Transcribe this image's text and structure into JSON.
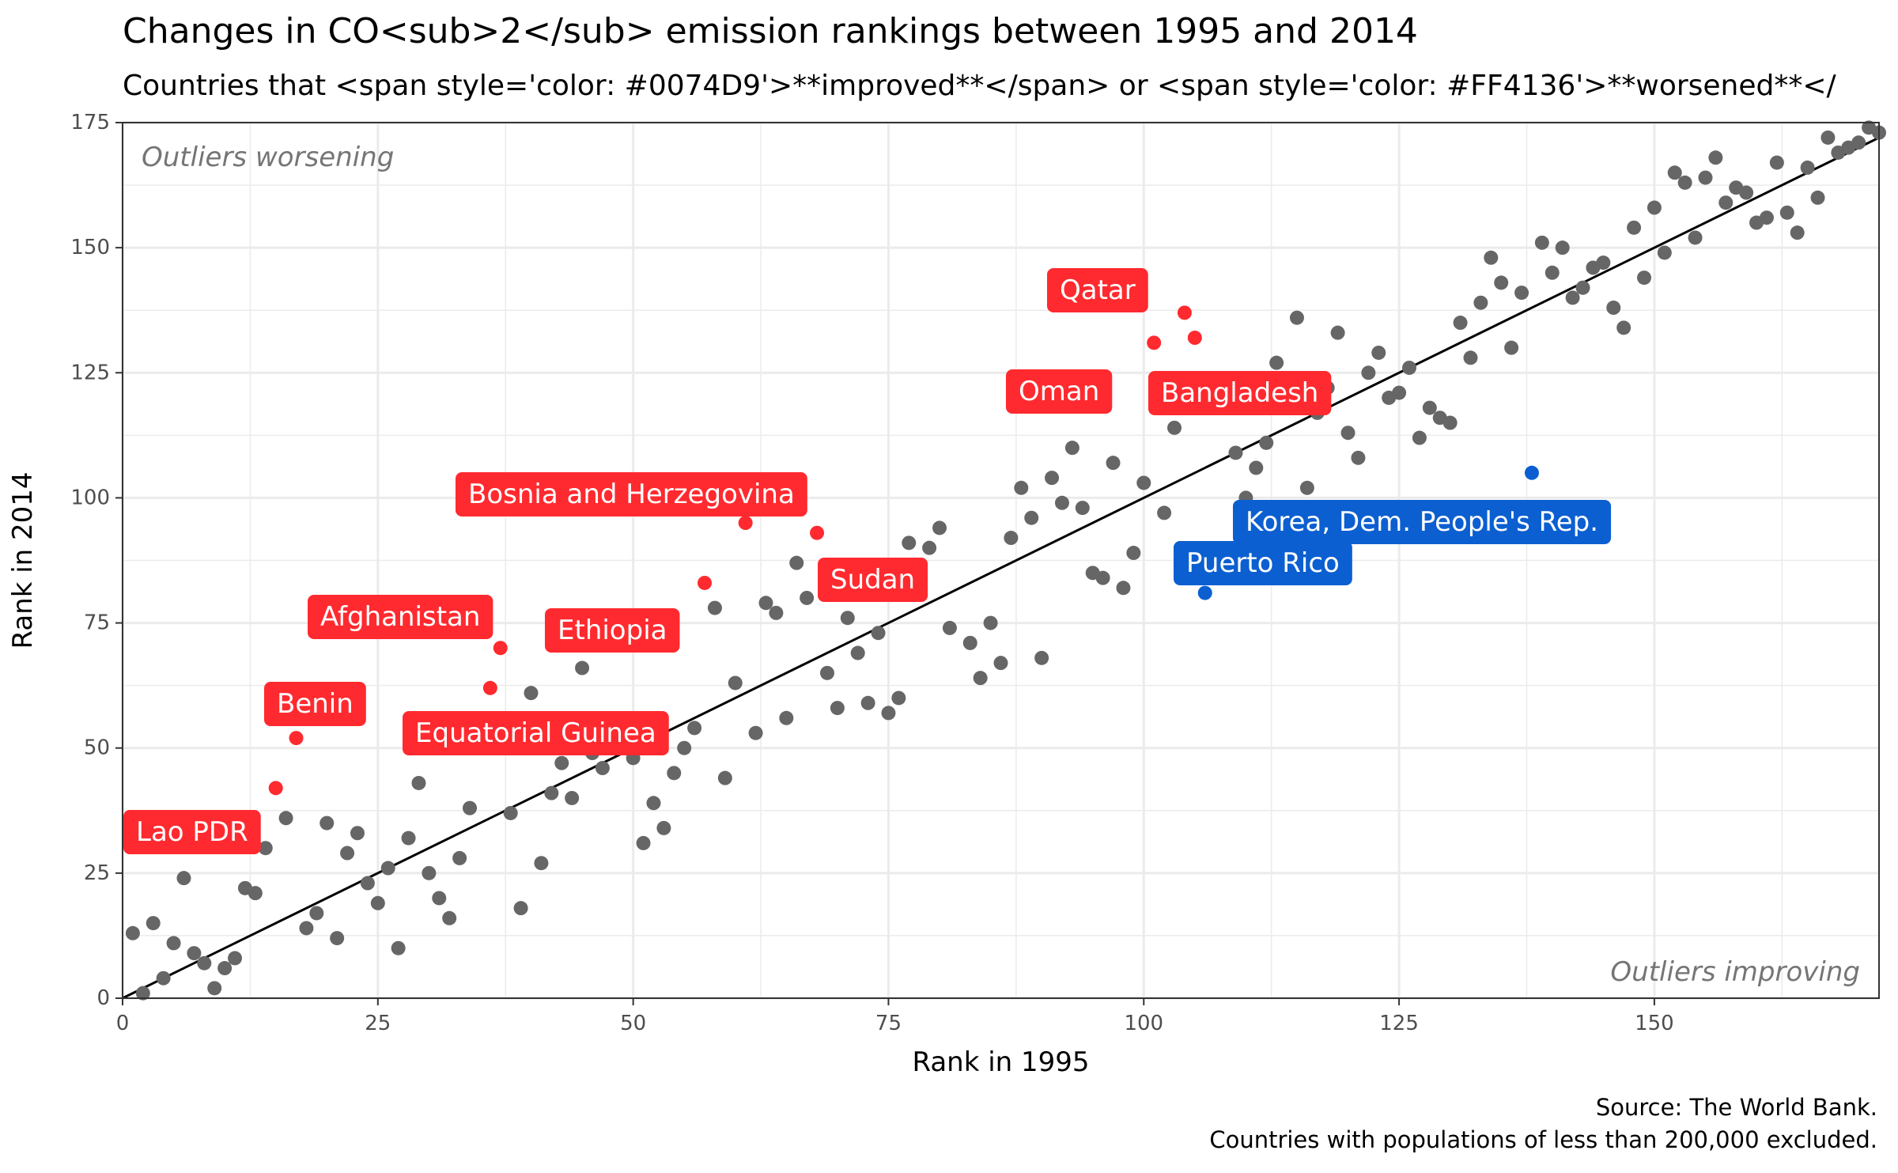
{
  "title": "Changes in CO<sub>2</sub> emission rankings between 1995 and 2014",
  "subtitle": "Countries that <span style='color: #0074D9'>**improved**</span> or <span style='color: #FF4136'>**worsened**</",
  "caption": {
    "line1": "Source: The World Bank.",
    "line2": "Countries with populations of less than 200,000 excluded."
  },
  "colors": {
    "worsened": "#FF2A2F",
    "improved": "#0B5FD0",
    "other": "#666666",
    "grid": "#EBEBEB"
  },
  "chart_data": {
    "type": "scatter",
    "xlabel": "Rank in 1995",
    "ylabel": "Rank in 2014",
    "xlim": [
      0,
      172
    ],
    "ylim": [
      0,
      175
    ],
    "xticks": [
      0,
      25,
      50,
      75,
      100,
      125,
      150
    ],
    "yticks": [
      0,
      25,
      50,
      75,
      100,
      125,
      150,
      175
    ],
    "grid": true,
    "reference_line": "y = x",
    "annotations": {
      "top_left": "Outliers worsening",
      "bottom_right": "Outliers improving"
    },
    "labeled_points": [
      {
        "label": "Lao PDR",
        "x": 15,
        "y": 42,
        "group": "worsened"
      },
      {
        "label": "Benin",
        "x": 17,
        "y": 52,
        "group": "worsened"
      },
      {
        "label": "Afghanistan",
        "x": 37,
        "y": 70,
        "group": "worsened"
      },
      {
        "label": "Equatorial Guinea",
        "x": 36,
        "y": 62,
        "group": "worsened"
      },
      {
        "label": "Ethiopia",
        "x": 57,
        "y": 83,
        "group": "worsened"
      },
      {
        "label": "Bosnia and Herzegovina",
        "x": 61,
        "y": 95,
        "group": "worsened"
      },
      {
        "label": "Sudan",
        "x": 68,
        "y": 93,
        "group": "worsened"
      },
      {
        "label": "Oman",
        "x": 101,
        "y": 131,
        "group": "worsened"
      },
      {
        "label": "Qatar",
        "x": 104,
        "y": 137,
        "group": "worsened"
      },
      {
        "label": "Bangladesh",
        "x": 105,
        "y": 132,
        "group": "worsened"
      },
      {
        "label": "Puerto Rico",
        "x": 106,
        "y": 81,
        "group": "improved"
      },
      {
        "label": "Korea, Dem. People's Rep.",
        "x": 138,
        "y": 105,
        "group": "improved"
      }
    ],
    "points": [
      [
        1,
        13
      ],
      [
        2,
        1
      ],
      [
        3,
        15
      ],
      [
        4,
        4
      ],
      [
        5,
        11
      ],
      [
        6,
        24
      ],
      [
        7,
        9
      ],
      [
        8,
        7
      ],
      [
        9,
        2
      ],
      [
        10,
        6
      ],
      [
        11,
        8
      ],
      [
        12,
        22
      ],
      [
        13,
        21
      ],
      [
        14,
        30
      ],
      [
        16,
        36
      ],
      [
        18,
        14
      ],
      [
        19,
        17
      ],
      [
        20,
        35
      ],
      [
        21,
        12
      ],
      [
        22,
        29
      ],
      [
        23,
        33
      ],
      [
        24,
        23
      ],
      [
        25,
        19
      ],
      [
        26,
        26
      ],
      [
        27,
        10
      ],
      [
        28,
        32
      ],
      [
        29,
        43
      ],
      [
        30,
        25
      ],
      [
        31,
        20
      ],
      [
        32,
        16
      ],
      [
        33,
        28
      ],
      [
        34,
        38
      ],
      [
        38,
        37
      ],
      [
        39,
        18
      ],
      [
        40,
        61
      ],
      [
        41,
        27
      ],
      [
        42,
        41
      ],
      [
        43,
        47
      ],
      [
        44,
        40
      ],
      [
        45,
        66
      ],
      [
        46,
        49
      ],
      [
        47,
        46
      ],
      [
        49,
        51
      ],
      [
        50,
        48
      ],
      [
        51,
        31
      ],
      [
        52,
        39
      ],
      [
        53,
        34
      ],
      [
        54,
        45
      ],
      [
        55,
        50
      ],
      [
        56,
        54
      ],
      [
        58,
        78
      ],
      [
        59,
        44
      ],
      [
        60,
        63
      ],
      [
        62,
        53
      ],
      [
        63,
        79
      ],
      [
        64,
        77
      ],
      [
        65,
        56
      ],
      [
        66,
        87
      ],
      [
        67,
        80
      ],
      [
        69,
        65
      ],
      [
        70,
        58
      ],
      [
        71,
        76
      ],
      [
        72,
        69
      ],
      [
        73,
        59
      ],
      [
        74,
        73
      ],
      [
        75,
        57
      ],
      [
        76,
        60
      ],
      [
        77,
        91
      ],
      [
        79,
        90
      ],
      [
        80,
        94
      ],
      [
        81,
        74
      ],
      [
        83,
        71
      ],
      [
        84,
        64
      ],
      [
        85,
        75
      ],
      [
        86,
        67
      ],
      [
        87,
        92
      ],
      [
        88,
        102
      ],
      [
        89,
        96
      ],
      [
        90,
        68
      ],
      [
        91,
        104
      ],
      [
        92,
        99
      ],
      [
        93,
        110
      ],
      [
        94,
        98
      ],
      [
        95,
        85
      ],
      [
        96,
        84
      ],
      [
        97,
        107
      ],
      [
        98,
        82
      ],
      [
        99,
        89
      ],
      [
        100,
        103
      ],
      [
        102,
        97
      ],
      [
        103,
        114
      ],
      [
        109,
        109
      ],
      [
        110,
        100
      ],
      [
        111,
        106
      ],
      [
        112,
        111
      ],
      [
        113,
        127
      ],
      [
        114,
        121
      ],
      [
        115,
        136
      ],
      [
        116,
        102
      ],
      [
        117,
        117
      ],
      [
        118,
        122
      ],
      [
        119,
        133
      ],
      [
        120,
        113
      ],
      [
        121,
        108
      ],
      [
        122,
        125
      ],
      [
        123,
        129
      ],
      [
        124,
        120
      ],
      [
        125,
        121
      ],
      [
        126,
        126
      ],
      [
        127,
        112
      ],
      [
        128,
        118
      ],
      [
        129,
        116
      ],
      [
        130,
        115
      ],
      [
        131,
        135
      ],
      [
        132,
        128
      ],
      [
        133,
        139
      ],
      [
        134,
        148
      ],
      [
        135,
        143
      ],
      [
        136,
        130
      ],
      [
        137,
        141
      ],
      [
        139,
        151
      ],
      [
        140,
        145
      ],
      [
        141,
        150
      ],
      [
        142,
        140
      ],
      [
        143,
        142
      ],
      [
        144,
        146
      ],
      [
        145,
        147
      ],
      [
        146,
        138
      ],
      [
        147,
        134
      ],
      [
        148,
        154
      ],
      [
        149,
        144
      ],
      [
        150,
        158
      ],
      [
        151,
        149
      ],
      [
        152,
        165
      ],
      [
        153,
        163
      ],
      [
        154,
        152
      ],
      [
        155,
        164
      ],
      [
        156,
        168
      ],
      [
        157,
        159
      ],
      [
        158,
        162
      ],
      [
        159,
        161
      ],
      [
        160,
        155
      ],
      [
        161,
        156
      ],
      [
        162,
        167
      ],
      [
        163,
        157
      ],
      [
        164,
        153
      ],
      [
        165,
        166
      ],
      [
        166,
        160
      ],
      [
        167,
        172
      ],
      [
        168,
        169
      ],
      [
        169,
        170
      ],
      [
        170,
        171
      ],
      [
        171,
        174
      ],
      [
        172,
        173
      ]
    ]
  }
}
